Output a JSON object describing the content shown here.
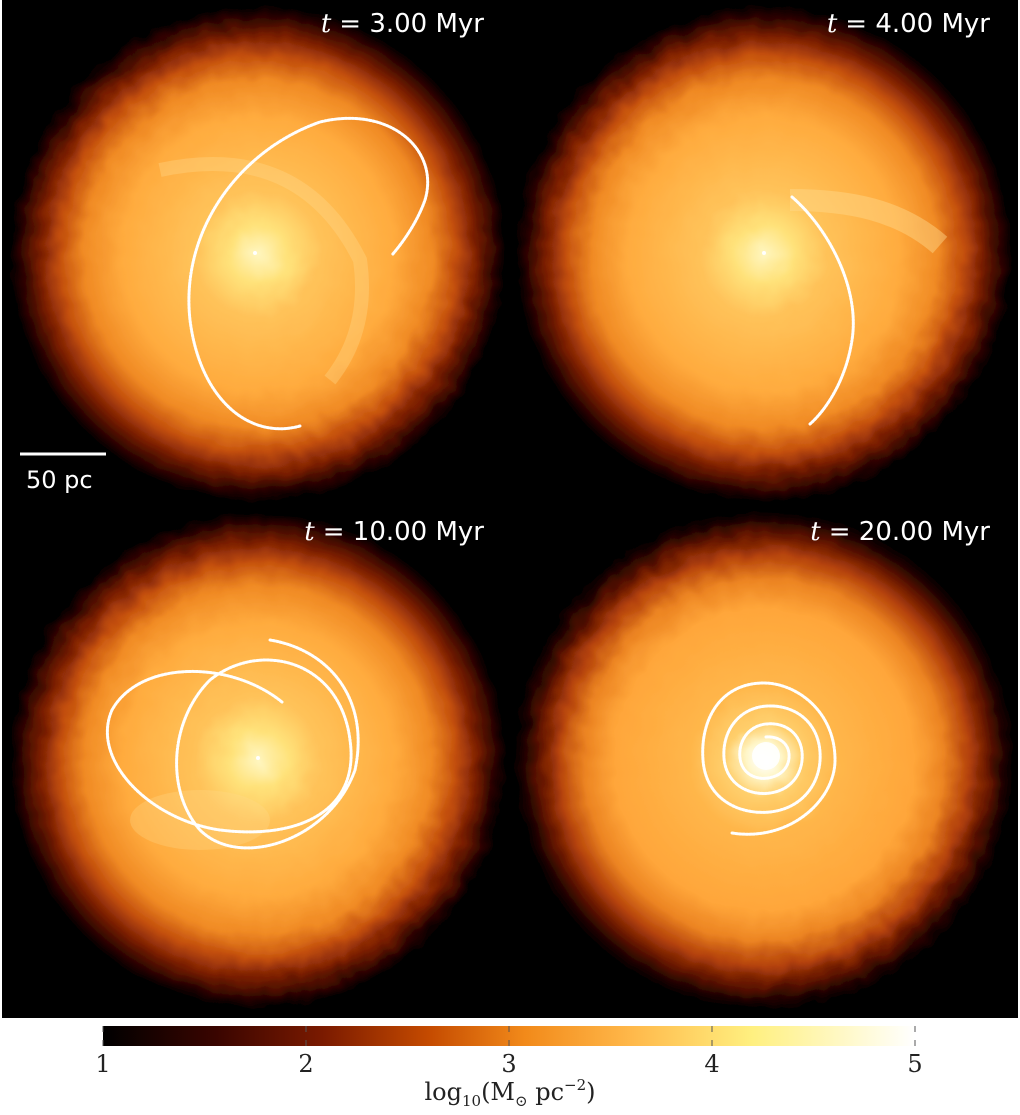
{
  "panels": [
    {
      "time_label": "= 3.00 Myr",
      "time_var": "t"
    },
    {
      "time_label": "= 4.00 Myr",
      "time_var": "t"
    },
    {
      "time_label": "= 10.00 Myr",
      "time_var": "t"
    },
    {
      "time_label": "= 20.00 Myr",
      "time_var": "t"
    }
  ],
  "scale_bar": {
    "label": "50 pc"
  },
  "colorbar": {
    "ticks": [
      "1",
      "2",
      "3",
      "4",
      "5"
    ],
    "label_main": "log",
    "label_sub": "10",
    "label_paren_open": "(M",
    "label_sun": "⊙",
    "label_unit": " pc",
    "label_exp": "−2",
    "label_paren_close": ")",
    "colors": [
      "#000000",
      "#3a0500",
      "#7a1a00",
      "#c44a00",
      "#f28a1a",
      "#ffb84a",
      "#fff080",
      "#ffffff"
    ]
  }
}
